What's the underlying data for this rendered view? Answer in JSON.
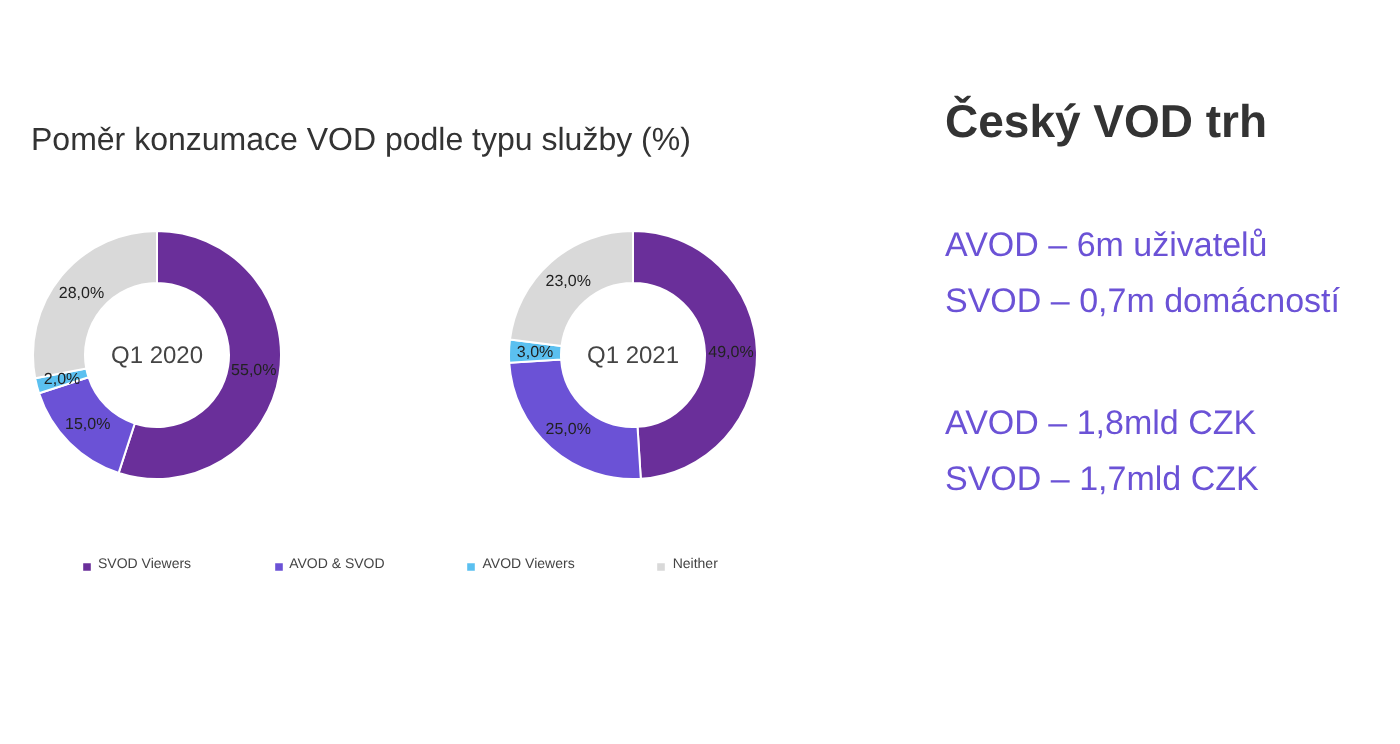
{
  "chart_data": [
    {
      "type": "donut",
      "title": "Poměr konzumace VOD podle typu služby (%)",
      "categories": [
        "SVOD Viewers",
        "AVOD & SVOD",
        "AVOD Viewers",
        "Neither"
      ],
      "colors": [
        "#6a2f9a",
        "#6b52d6",
        "#5bc0f0",
        "#d9d9d9"
      ],
      "legend": "bottom",
      "series": [
        {
          "name": "Q1 2020",
          "values": [
            55,
            15,
            2,
            28
          ],
          "value_labels": [
            "55,0%",
            "15,0%",
            "2,0%",
            "28,0%"
          ]
        },
        {
          "name": "Q1 2021",
          "values": [
            49,
            25,
            3,
            23
          ],
          "value_labels": [
            "49,0%",
            "25,0%",
            "3,0%",
            "23,0%"
          ]
        }
      ]
    },
    {
      "type": "other",
      "title": "Český VOD trh",
      "annotations": [
        "AVOD – 6m uživatelů",
        "SVOD – 0,7m domácností",
        "AVOD – 1,8mld CZK",
        "SVOD – 1,7mld CZK"
      ]
    }
  ]
}
